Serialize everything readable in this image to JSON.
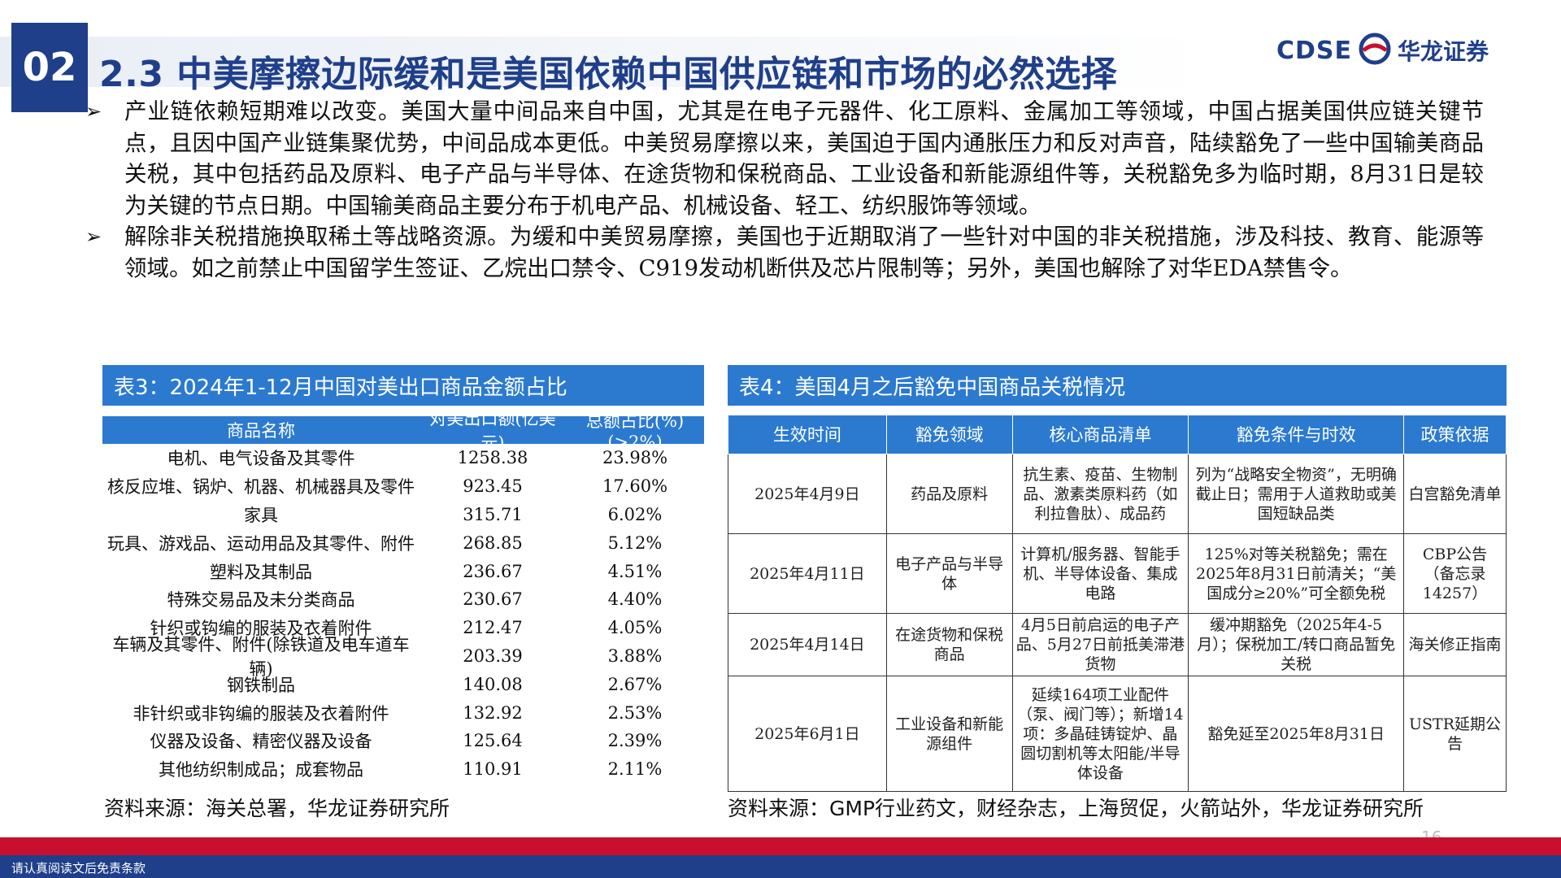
{
  "header": {
    "section_num": "02",
    "title": "2.3 中美摩擦边际缓和是美国依赖中国供应链和市场的必然选择",
    "logo_text": "CDSE",
    "logo_cn": "华龙证券",
    "brand_color": "#1f3f8a"
  },
  "bullets": [
    "产业链依赖短期难以改变。美国大量中间品来自中国，尤其是在电子元器件、化工原料、金属加工等领域，中国占据美国供应链关键节点，且因中国产业链集聚优势，中间品成本更低。中美贸易摩擦以来，美国迫于国内通胀压力和反对声音，陆续豁免了一些中国输美商品关税，其中包括药品及原料、电子产品与半导体、在途货物和保税商品、工业设备和新能源组件等，关税豁免多为临时期，8月31日是较为关键的节点日期。中国输美商品主要分布于机电产品、机械设备、轻工、纺织服饰等领域。",
    "解除非关税措施换取稀土等战略资源。为缓和中美贸易摩擦，美国也于近期取消了一些针对中国的非关税措施，涉及科技、教育、能源等领域。如之前禁止中国留学生签证、乙烷出口禁令、C919发动机断供及芯片限制等；另外，美国也解除了对华EDA禁售令。"
  ],
  "table3": {
    "title": "表3：2024年1-12月中国对美出口商品金额占比",
    "columns": [
      "商品名称",
      "对美出口额(亿美元)",
      "总额占比(%)(>2%)"
    ],
    "rows": [
      [
        "电机、电气设备及其零件",
        "1258.38",
        "23.98%"
      ],
      [
        "核反应堆、锅炉、机器、机械器具及零件",
        "923.45",
        "17.60%"
      ],
      [
        "家具",
        "315.71",
        "6.02%"
      ],
      [
        "玩具、游戏品、运动用品及其零件、附件",
        "268.85",
        "5.12%"
      ],
      [
        "塑料及其制品",
        "236.67",
        "4.51%"
      ],
      [
        "特殊交易品及未分类商品",
        "230.67",
        "4.40%"
      ],
      [
        "针织或钩编的服装及衣着附件",
        "212.47",
        "4.05%"
      ],
      [
        "车辆及其零件、附件(除铁道及电车道车辆)",
        "203.39",
        "3.88%"
      ],
      [
        "钢铁制品",
        "140.08",
        "2.67%"
      ],
      [
        "非针织或非钩编的服装及衣着附件",
        "132.92",
        "2.53%"
      ],
      [
        "仪器及设备、精密仪器及设备",
        "125.64",
        "2.39%"
      ],
      [
        "其他纺织制成品；成套物品",
        "110.91",
        "2.11%"
      ]
    ],
    "source": "资料来源：海关总署，华龙证券研究所"
  },
  "table4": {
    "title": "表4：美国4月之后豁免中国商品关税情况",
    "columns": [
      "生效时间",
      "豁免领域",
      "核心商品清单",
      "豁免条件与时效",
      "政策依据"
    ],
    "rows": [
      [
        "2025年4月9日",
        "药品及原料",
        "抗生素、疫苗、生物制品、激素类原料药（如利拉鲁肽）、成品药",
        "列为“战略安全物资”，无明确截止日；需用于人道救助或美国短缺品类",
        "白宫豁免清单"
      ],
      [
        "2025年4月11日",
        "电子产品与半导体",
        "计算机/服务器、智能手机、半导体设备、集成电路",
        "125%对等关税豁免；需在2025年8月31日前清关；“美国成分≥20%”可全额免税",
        "CBP公告（备忘录14257）"
      ],
      [
        "2025年4月14日",
        "在途货物和保税商品",
        "4月5日前启运的电子产品、5月27日前抵美滞港货物",
        "缓冲期豁免（2025年4-5月）；保税加工/转口商品暂免关税",
        "海关修正指南"
      ],
      [
        "2025年6月1日",
        "工业设备和新能源组件",
        "延续164项工业配件（泵、阀门等）；新增14项：多晶硅铸锭炉、晶圆切割机等太阳能/半导体设备",
        "豁免延至2025年8月31日",
        "USTR延期公告"
      ]
    ],
    "source": "资料来源：GMP行业药文，财经杂志，上海贸促，火箭站外，华龙证券研究所"
  },
  "footer": {
    "page_number": "16",
    "disclaimer": "请认真阅读文后免责条款",
    "accent_red": "#c8102e"
  }
}
